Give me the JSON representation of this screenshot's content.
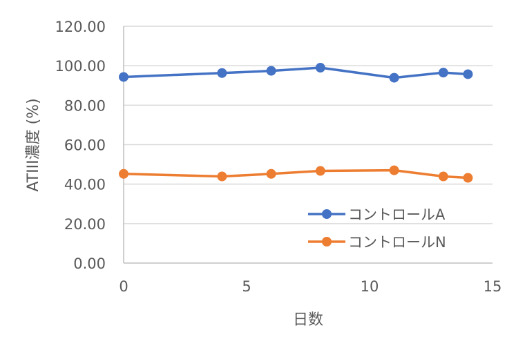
{
  "chart_data": {
    "type": "line",
    "title": "",
    "xlabel": "日数",
    "ylabel": "ATIII濃度 (%)",
    "xlim": [
      0,
      15
    ],
    "ylim": [
      0,
      120
    ],
    "xticks": [
      "0",
      "5",
      "10",
      "15"
    ],
    "yticks": [
      "0.00",
      "20.00",
      "40.00",
      "60.00",
      "80.00",
      "100.00",
      "120.00"
    ],
    "grid": true,
    "legend_position": "bottom-right",
    "x": [
      0,
      4,
      6,
      8,
      11,
      13,
      14
    ],
    "series": [
      {
        "name": "コントロールA",
        "color": "#4472C4",
        "values": [
          94.3,
          96.3,
          97.4,
          99.0,
          93.9,
          96.5,
          95.7
        ]
      },
      {
        "name": "コントロールN",
        "color": "#ED7D31",
        "values": [
          45.2,
          43.9,
          45.2,
          46.7,
          47.0,
          43.9,
          43.2
        ]
      }
    ]
  }
}
